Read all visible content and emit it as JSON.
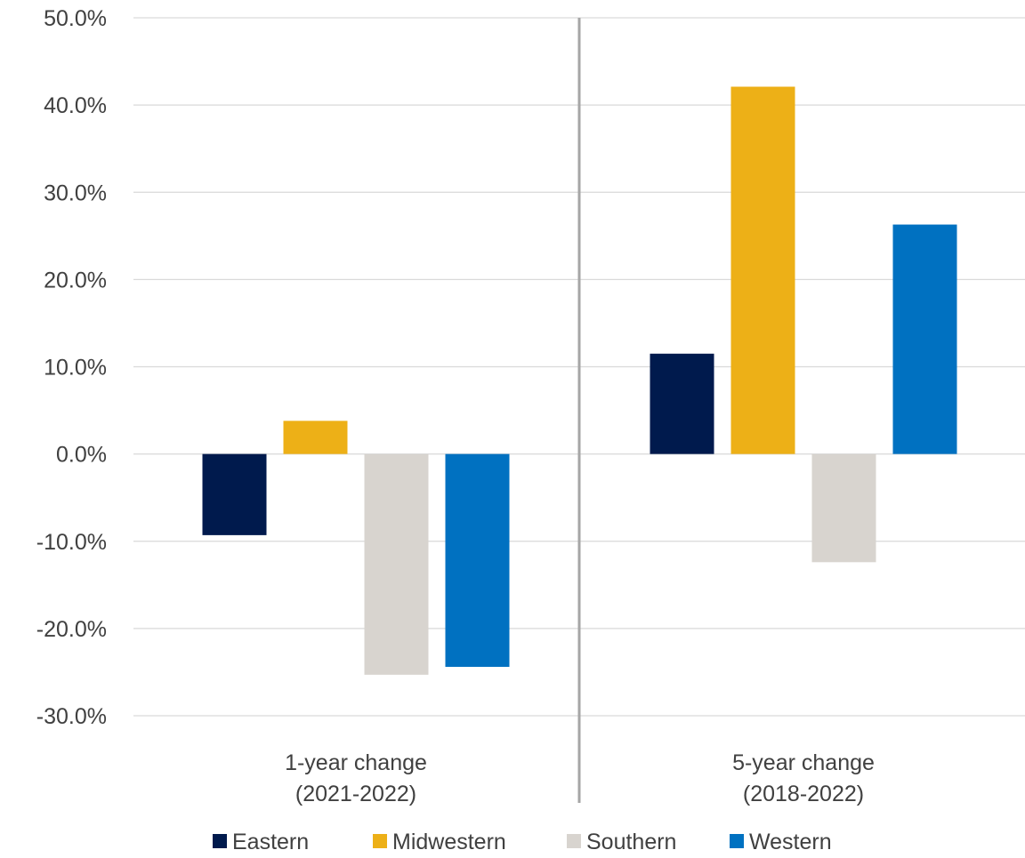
{
  "chart_data": {
    "type": "bar",
    "categories": [
      [
        "1-year change",
        "(2021-2022)"
      ],
      [
        "5-year change",
        "(2018-2022)"
      ]
    ],
    "series": [
      {
        "name": "Eastern",
        "color": "#001A4D",
        "values": [
          -9.3,
          11.5
        ]
      },
      {
        "name": "Midwestern",
        "color": "#EDB017",
        "values": [
          3.8,
          42.1
        ]
      },
      {
        "name": "Southern",
        "color": "#D8D4CF",
        "values": [
          -25.3,
          -12.4
        ]
      },
      {
        "name": "Western",
        "color": "#0071C1",
        "values": [
          -24.4,
          26.3
        ]
      }
    ],
    "yticks": [
      "50.0%",
      "40.0%",
      "30.0%",
      "20.0%",
      "10.0%",
      "0.0%",
      "-10.0%",
      "-20.0%",
      "-30.0%"
    ],
    "ylim": [
      -30,
      50
    ],
    "ytick_values": [
      50,
      40,
      30,
      20,
      10,
      0,
      -10,
      -20,
      -30
    ],
    "grid": true,
    "category_divider": true,
    "legend_position": "bottom",
    "title": "",
    "xlabel": "",
    "ylabel": ""
  }
}
